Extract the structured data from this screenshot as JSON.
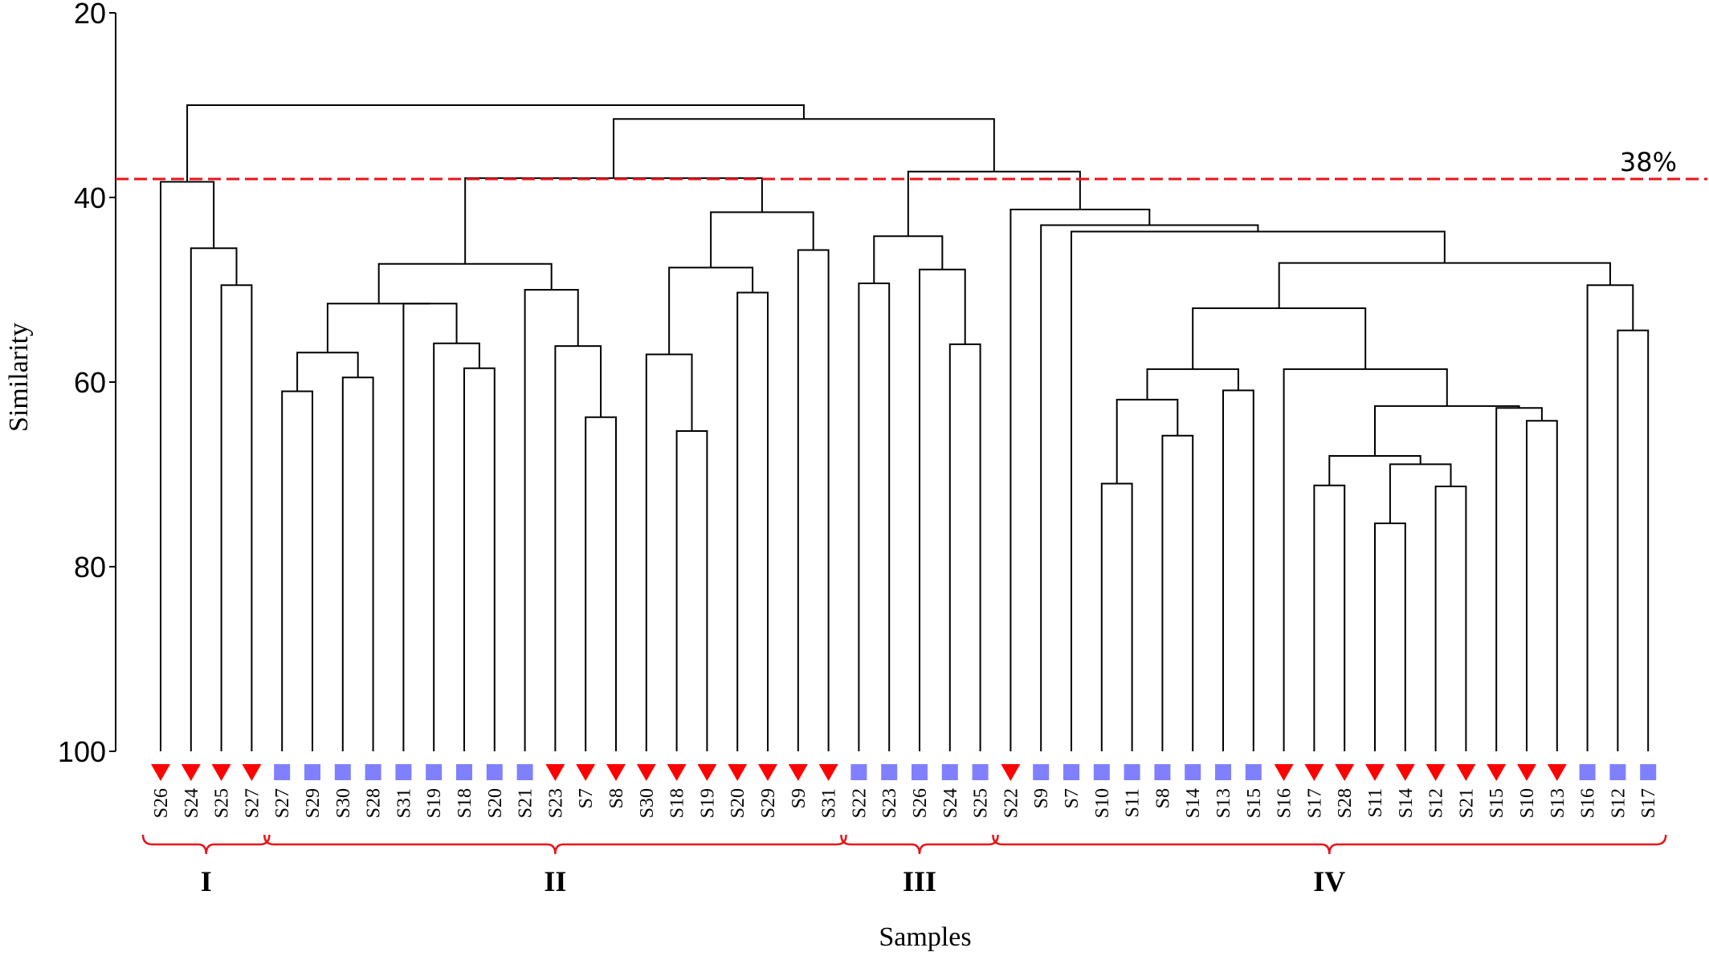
{
  "chart_data": {
    "type": "dendrogram",
    "xlabel": "Samples",
    "ylabel": "Similarity",
    "ylim": [
      20,
      100
    ],
    "yticks": [
      20,
      40,
      60,
      80,
      100
    ],
    "grid": false,
    "threshold": {
      "value": 38,
      "label": "38%",
      "color": "#e8141b"
    },
    "marker_colors": {
      "triangle": "#ff0000",
      "square": "#8080ff"
    },
    "leaves": [
      {
        "label": "S26",
        "marker": "triangle"
      },
      {
        "label": "S24",
        "marker": "triangle"
      },
      {
        "label": "S25",
        "marker": "triangle"
      },
      {
        "label": "S27",
        "marker": "triangle"
      },
      {
        "label": "S27",
        "marker": "square"
      },
      {
        "label": "S29",
        "marker": "square"
      },
      {
        "label": "S30",
        "marker": "square"
      },
      {
        "label": "S28",
        "marker": "square"
      },
      {
        "label": "S31",
        "marker": "square"
      },
      {
        "label": "S19",
        "marker": "square"
      },
      {
        "label": "S18",
        "marker": "square"
      },
      {
        "label": "S20",
        "marker": "square"
      },
      {
        "label": "S21",
        "marker": "square"
      },
      {
        "label": "S23",
        "marker": "triangle"
      },
      {
        "label": "S7",
        "marker": "triangle"
      },
      {
        "label": "S8",
        "marker": "triangle"
      },
      {
        "label": "S30",
        "marker": "triangle"
      },
      {
        "label": "S18",
        "marker": "triangle"
      },
      {
        "label": "S19",
        "marker": "triangle"
      },
      {
        "label": "S20",
        "marker": "triangle"
      },
      {
        "label": "S29",
        "marker": "triangle"
      },
      {
        "label": "S9",
        "marker": "triangle"
      },
      {
        "label": "S31",
        "marker": "triangle"
      },
      {
        "label": "S22",
        "marker": "square"
      },
      {
        "label": "S23",
        "marker": "square"
      },
      {
        "label": "S26",
        "marker": "square"
      },
      {
        "label": "S24",
        "marker": "square"
      },
      {
        "label": "S25",
        "marker": "square"
      },
      {
        "label": "S22",
        "marker": "triangle"
      },
      {
        "label": "S9",
        "marker": "square"
      },
      {
        "label": "S7",
        "marker": "square"
      },
      {
        "label": "S10",
        "marker": "square"
      },
      {
        "label": "S11",
        "marker": "square"
      },
      {
        "label": "S8",
        "marker": "square"
      },
      {
        "label": "S14",
        "marker": "square"
      },
      {
        "label": "S13",
        "marker": "square"
      },
      {
        "label": "S15",
        "marker": "square"
      },
      {
        "label": "S16",
        "marker": "triangle"
      },
      {
        "label": "S17",
        "marker": "triangle"
      },
      {
        "label": "S28",
        "marker": "triangle"
      },
      {
        "label": "S11",
        "marker": "triangle"
      },
      {
        "label": "S14",
        "marker": "triangle"
      },
      {
        "label": "S12",
        "marker": "triangle"
      },
      {
        "label": "S21",
        "marker": "triangle"
      },
      {
        "label": "S15",
        "marker": "triangle"
      },
      {
        "label": "S10",
        "marker": "triangle"
      },
      {
        "label": "S13",
        "marker": "triangle"
      },
      {
        "label": "S16",
        "marker": "square"
      },
      {
        "label": "S12",
        "marker": "square"
      },
      {
        "label": "S17",
        "marker": "square"
      }
    ],
    "merges": [
      {
        "l": [
          "L",
          2
        ],
        "r": [
          "L",
          3
        ],
        "h": 49.5
      },
      {
        "l": [
          "L",
          1
        ],
        "r": [
          "N",
          0
        ],
        "h": 45.5
      },
      {
        "l": [
          "L",
          0
        ],
        "r": [
          "N",
          1
        ],
        "h": 38.3
      },
      {
        "l": [
          "L",
          6
        ],
        "r": [
          "L",
          7
        ],
        "h": 59.5
      },
      {
        "l": [
          "L",
          4
        ],
        "r": [
          "L",
          5
        ],
        "h": 61.0
      },
      {
        "l": [
          "N",
          4
        ],
        "r": [
          "N",
          3
        ],
        "h": 56.8
      },
      {
        "l": [
          "L",
          10
        ],
        "r": [
          "L",
          11
        ],
        "h": 58.5
      },
      {
        "l": [
          "L",
          9
        ],
        "r": [
          "N",
          6
        ],
        "h": 55.8
      },
      {
        "l": [
          "L",
          8
        ],
        "r": [
          "N",
          7
        ],
        "h": 51.5
      },
      {
        "l": [
          "N",
          5
        ],
        "r": [
          "N",
          8
        ],
        "h": 51.5
      },
      {
        "l": [
          "L",
          14
        ],
        "r": [
          "L",
          15
        ],
        "h": 63.8
      },
      {
        "l": [
          "L",
          13
        ],
        "r": [
          "N",
          10
        ],
        "h": 56.1
      },
      {
        "l": [
          "L",
          12
        ],
        "r": [
          "N",
          11
        ],
        "h": 50.0
      },
      {
        "l": [
          "N",
          9
        ],
        "r": [
          "N",
          12
        ],
        "h": 47.2
      },
      {
        "l": [
          "L",
          17
        ],
        "r": [
          "L",
          18
        ],
        "h": 65.3
      },
      {
        "l": [
          "L",
          16
        ],
        "r": [
          "N",
          14
        ],
        "h": 57.0
      },
      {
        "l": [
          "L",
          19
        ],
        "r": [
          "L",
          20
        ],
        "h": 50.3
      },
      {
        "l": [
          "N",
          15
        ],
        "r": [
          "N",
          16
        ],
        "h": 47.6
      },
      {
        "l": [
          "L",
          21
        ],
        "r": [
          "L",
          22
        ],
        "h": 45.7
      },
      {
        "l": [
          "N",
          17
        ],
        "r": [
          "N",
          18
        ],
        "h": 41.6
      },
      {
        "l": [
          "N",
          13
        ],
        "r": [
          "N",
          19
        ],
        "h": 37.9
      },
      {
        "l": [
          "L",
          26
        ],
        "r": [
          "L",
          27
        ],
        "h": 55.9
      },
      {
        "l": [
          "L",
          25
        ],
        "r": [
          "N",
          21
        ],
        "h": 47.8
      },
      {
        "l": [
          "L",
          23
        ],
        "r": [
          "L",
          24
        ],
        "h": 49.3
      },
      {
        "l": [
          "N",
          23
        ],
        "r": [
          "N",
          22
        ],
        "h": 44.2
      },
      {
        "l": [
          "L",
          33
        ],
        "r": [
          "L",
          34
        ],
        "h": 65.8
      },
      {
        "l": [
          "L",
          31
        ],
        "r": [
          "L",
          32
        ],
        "h": 71.0
      },
      {
        "l": [
          "N",
          26
        ],
        "r": [
          "N",
          25
        ],
        "h": 61.9
      },
      {
        "l": [
          "L",
          35
        ],
        "r": [
          "L",
          36
        ],
        "h": 60.9
      },
      {
        "l": [
          "N",
          27
        ],
        "r": [
          "N",
          28
        ],
        "h": 58.6
      },
      {
        "l": [
          "L",
          40
        ],
        "r": [
          "L",
          41
        ],
        "h": 75.3
      },
      {
        "l": [
          "L",
          42
        ],
        "r": [
          "L",
          43
        ],
        "h": 71.3
      },
      {
        "l": [
          "N",
          30
        ],
        "r": [
          "N",
          31
        ],
        "h": 68.9
      },
      {
        "l": [
          "L",
          38
        ],
        "r": [
          "L",
          39
        ],
        "h": 71.2
      },
      {
        "l": [
          "N",
          33
        ],
        "r": [
          "N",
          32
        ],
        "h": 68.0
      },
      {
        "l": [
          "L",
          45
        ],
        "r": [
          "L",
          46
        ],
        "h": 64.2
      },
      {
        "l": [
          "L",
          44
        ],
        "r": [
          "N",
          35
        ],
        "h": 62.8
      },
      {
        "l": [
          "N",
          34
        ],
        "r": [
          "N",
          36
        ],
        "h": 62.6
      },
      {
        "l": [
          "L",
          37
        ],
        "r": [
          "N",
          37
        ],
        "h": 58.6
      },
      {
        "l": [
          "N",
          29
        ],
        "r": [
          "N",
          38
        ],
        "h": 52.0
      },
      {
        "l": [
          "L",
          48
        ],
        "r": [
          "L",
          49
        ],
        "h": 54.4
      },
      {
        "l": [
          "L",
          47
        ],
        "r": [
          "N",
          40
        ],
        "h": 49.5
      },
      {
        "l": [
          "N",
          39
        ],
        "r": [
          "N",
          41
        ],
        "h": 47.1
      },
      {
        "l": [
          "L",
          30
        ],
        "r": [
          "N",
          42
        ],
        "h": 43.7
      },
      {
        "l": [
          "L",
          29
        ],
        "r": [
          "N",
          43
        ],
        "h": 43.0
      },
      {
        "l": [
          "L",
          28
        ],
        "r": [
          "N",
          44
        ],
        "h": 41.3
      },
      {
        "l": [
          "N",
          24
        ],
        "r": [
          "N",
          45
        ],
        "h": 37.2
      },
      {
        "l": [
          "N",
          20
        ],
        "r": [
          "N",
          46
        ],
        "h": 31.5
      },
      {
        "l": [
          "N",
          2
        ],
        "r": [
          "N",
          47
        ],
        "h": 30.0
      }
    ],
    "groups": [
      {
        "label": "I",
        "from": 0,
        "to": 3
      },
      {
        "label": "II",
        "from": 4,
        "to": 22
      },
      {
        "label": "III",
        "from": 23,
        "to": 27
      },
      {
        "label": "IV",
        "from": 28,
        "to": 49
      }
    ]
  }
}
